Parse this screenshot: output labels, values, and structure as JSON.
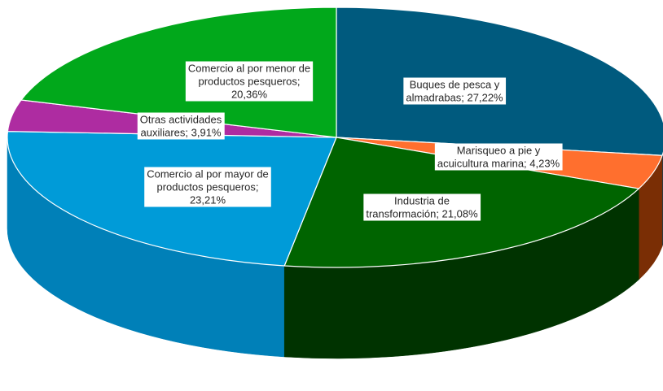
{
  "chart_data": {
    "type": "pie",
    "title": "",
    "three_d": true,
    "start_angle_deg": 90,
    "direction": "clockwise",
    "slices": [
      {
        "label_lines": [
          "Buques de pesca y",
          "almadrabas; 27,22%"
        ],
        "name": "Buques de pesca y almadrabas",
        "percent": 27.22,
        "color": "#005A7E",
        "side_color": "#003C58"
      },
      {
        "label_lines": [
          "Marisqueo a pie y",
          "acuicultura marina; 4,23%"
        ],
        "name": "Marisqueo a pie y acuicultura marina",
        "percent": 4.23,
        "color": "#FF6F2E",
        "side_color": "#7A2E05"
      },
      {
        "label_lines": [
          "Industria de",
          "transformación; 21,08%"
        ],
        "name": "Industria de transformación",
        "percent": 21.08,
        "color": "#006400",
        "side_color": "#003300"
      },
      {
        "label_lines": [
          "Comercio al por mayor de",
          "productos pesqueros;",
          "23,21%"
        ],
        "name": "Comercio al por mayor de productos pesqueros",
        "percent": 23.21,
        "color": "#009BD8",
        "side_color": "#0080B8"
      },
      {
        "label_lines": [
          "Otras actividades",
          "auxiliares; 3,91%"
        ],
        "name": "Otras actividades auxiliares",
        "percent": 3.91,
        "color": "#AE2CA1",
        "side_color": "#6E1A66"
      },
      {
        "label_lines": [
          "Comercio al por menor de",
          "productos pesqueros;",
          "20,36%"
        ],
        "name": "Comercio al por menor de productos pesqueros",
        "percent": 20.36,
        "color": "#01A81B",
        "side_color": "#016E12"
      }
    ]
  }
}
